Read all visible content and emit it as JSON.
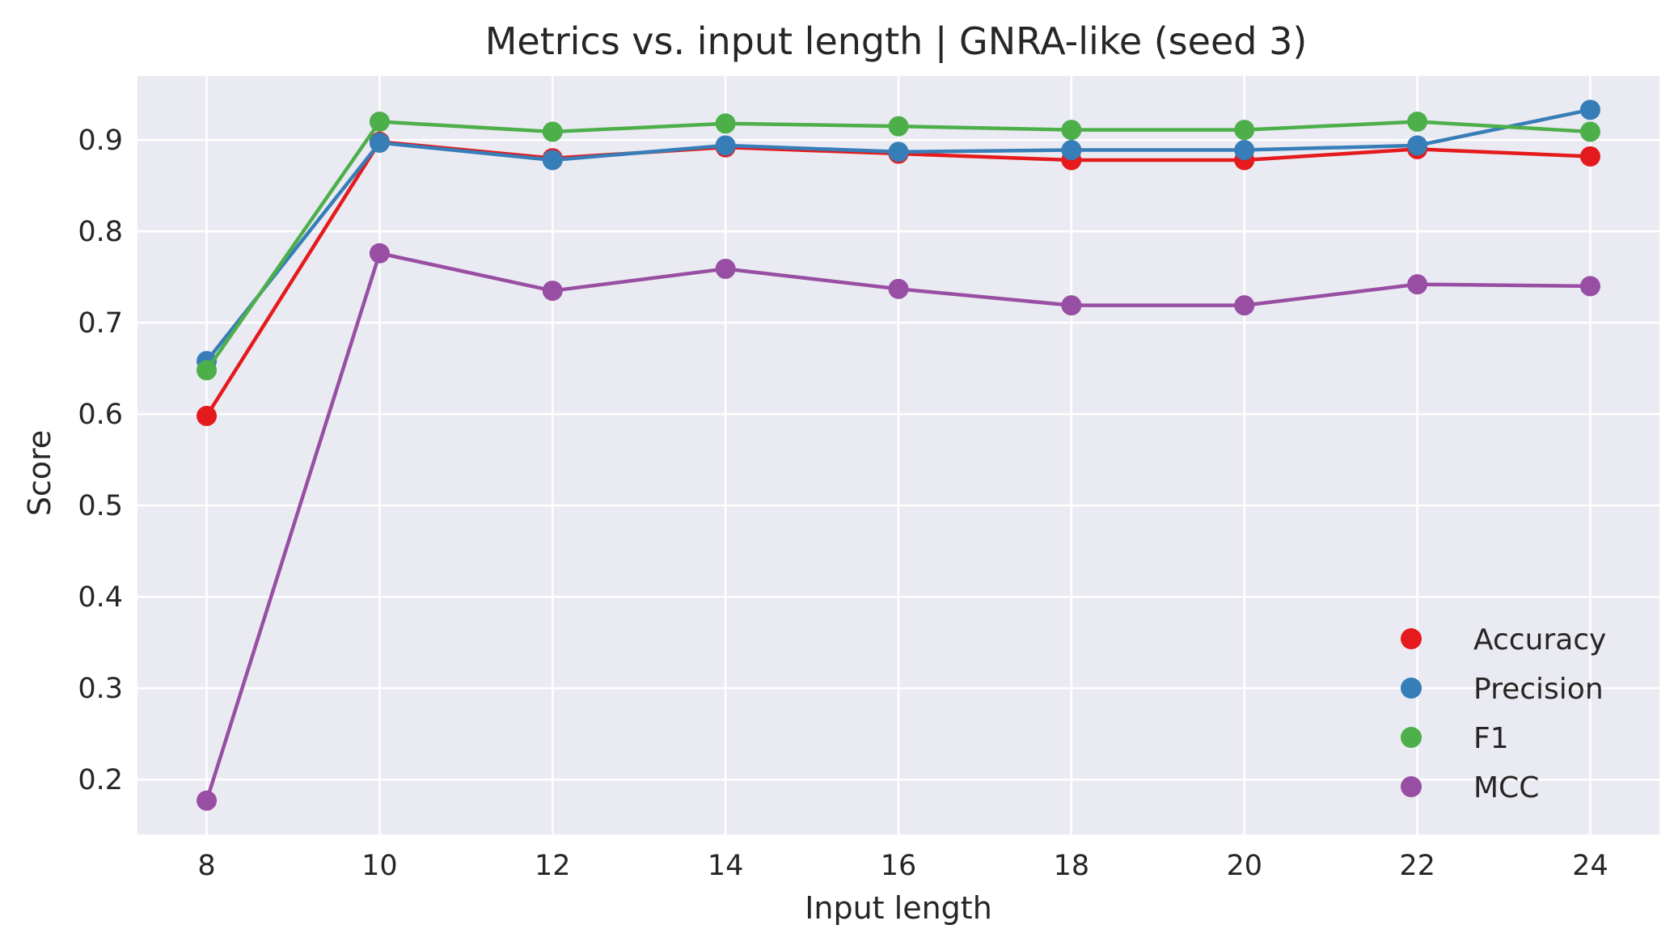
{
  "chart_data": {
    "type": "line",
    "title": "Metrics vs. input length | GNRA-like (seed 3)",
    "xlabel": "Input length",
    "ylabel": "Score",
    "x": [
      8,
      10,
      12,
      14,
      16,
      18,
      20,
      22,
      24
    ],
    "xlim": [
      7.2,
      24.8
    ],
    "ylim": [
      0.14,
      0.97
    ],
    "xticks": [
      8,
      10,
      12,
      14,
      16,
      18,
      20,
      22,
      24
    ],
    "yticks": [
      0.2,
      0.3,
      0.4,
      0.5,
      0.6,
      0.7,
      0.8,
      0.9
    ],
    "grid": true,
    "legend_position": "lower-right",
    "series": [
      {
        "name": "Accuracy",
        "color": "#e41a1c",
        "values": [
          0.598,
          0.898,
          0.88,
          0.892,
          0.885,
          0.878,
          0.878,
          0.89,
          0.882
        ]
      },
      {
        "name": "Precision",
        "color": "#377eb8",
        "values": [
          0.658,
          0.897,
          0.878,
          0.894,
          0.887,
          0.889,
          0.889,
          0.894,
          0.933
        ]
      },
      {
        "name": "F1",
        "color": "#4daf4a",
        "values": [
          0.648,
          0.92,
          0.909,
          0.918,
          0.915,
          0.911,
          0.911,
          0.92,
          0.909
        ]
      },
      {
        "name": "MCC",
        "color": "#984ea3",
        "values": [
          0.177,
          0.776,
          0.735,
          0.759,
          0.737,
          0.719,
          0.719,
          0.742,
          0.74
        ]
      }
    ]
  }
}
